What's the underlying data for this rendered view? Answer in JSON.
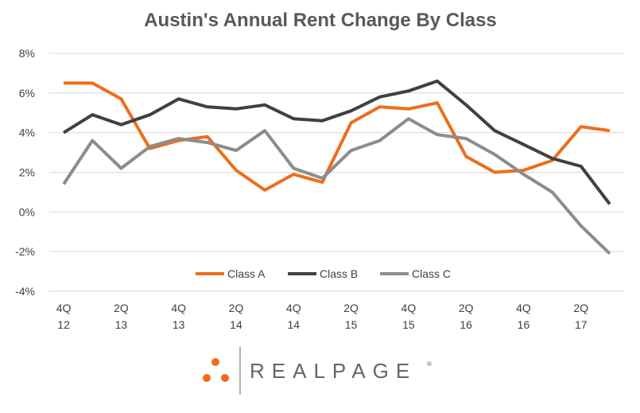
{
  "chart_data": {
    "type": "line",
    "title": "Austin's Annual Rent Change By Class",
    "xlabel": "",
    "ylabel": "",
    "ylim": [
      -4,
      8
    ],
    "yticks": [
      "8%",
      "6%",
      "4%",
      "2%",
      "0%",
      "-2%",
      "-4%"
    ],
    "ytick_values": [
      8,
      6,
      4,
      2,
      0,
      -2,
      -4
    ],
    "categories": [
      "4Q12",
      "1Q13",
      "2Q13",
      "3Q13",
      "4Q13",
      "1Q14",
      "2Q14",
      "3Q14",
      "4Q14",
      "1Q15",
      "2Q15",
      "3Q15",
      "4Q15",
      "1Q16",
      "2Q16",
      "3Q16",
      "4Q16",
      "1Q17",
      "2Q17",
      "3Q17"
    ],
    "x_tick_labels": [
      {
        "index": 0,
        "line1": "4Q",
        "line2": "12"
      },
      {
        "index": 2,
        "line1": "2Q",
        "line2": "13"
      },
      {
        "index": 4,
        "line1": "4Q",
        "line2": "13"
      },
      {
        "index": 6,
        "line1": "2Q",
        "line2": "14"
      },
      {
        "index": 8,
        "line1": "4Q",
        "line2": "14"
      },
      {
        "index": 10,
        "line1": "2Q",
        "line2": "15"
      },
      {
        "index": 12,
        "line1": "4Q",
        "line2": "15"
      },
      {
        "index": 14,
        "line1": "2Q",
        "line2": "16"
      },
      {
        "index": 16,
        "line1": "4Q",
        "line2": "16"
      },
      {
        "index": 18,
        "line1": "2Q",
        "line2": "17"
      }
    ],
    "series": [
      {
        "name": "Class A",
        "color": "#ed6d1c",
        "values": [
          6.5,
          6.5,
          5.7,
          3.2,
          3.6,
          3.8,
          2.1,
          1.1,
          1.9,
          1.5,
          4.5,
          5.3,
          5.2,
          5.5,
          2.8,
          2.0,
          2.1,
          2.6,
          4.3,
          4.1
        ]
      },
      {
        "name": "Class B",
        "color": "#404040",
        "values": [
          4.0,
          4.9,
          4.4,
          4.9,
          5.7,
          5.3,
          5.2,
          5.4,
          4.7,
          4.6,
          5.1,
          5.8,
          6.1,
          6.6,
          5.4,
          4.1,
          3.4,
          2.7,
          2.3,
          0.4
        ]
      },
      {
        "name": "Class C",
        "color": "#8c8c8c",
        "values": [
          1.4,
          3.6,
          2.2,
          3.3,
          3.7,
          3.5,
          3.1,
          4.1,
          2.2,
          1.7,
          3.1,
          3.6,
          4.7,
          3.9,
          3.7,
          2.9,
          1.9,
          1.0,
          -0.7,
          -2.1
        ]
      }
    ],
    "grid": true,
    "legend_position": "bottom-center"
  },
  "logo": {
    "text": "REALPAGE",
    "dot_color": "#ed6d1c",
    "divider_color": "#999999"
  }
}
